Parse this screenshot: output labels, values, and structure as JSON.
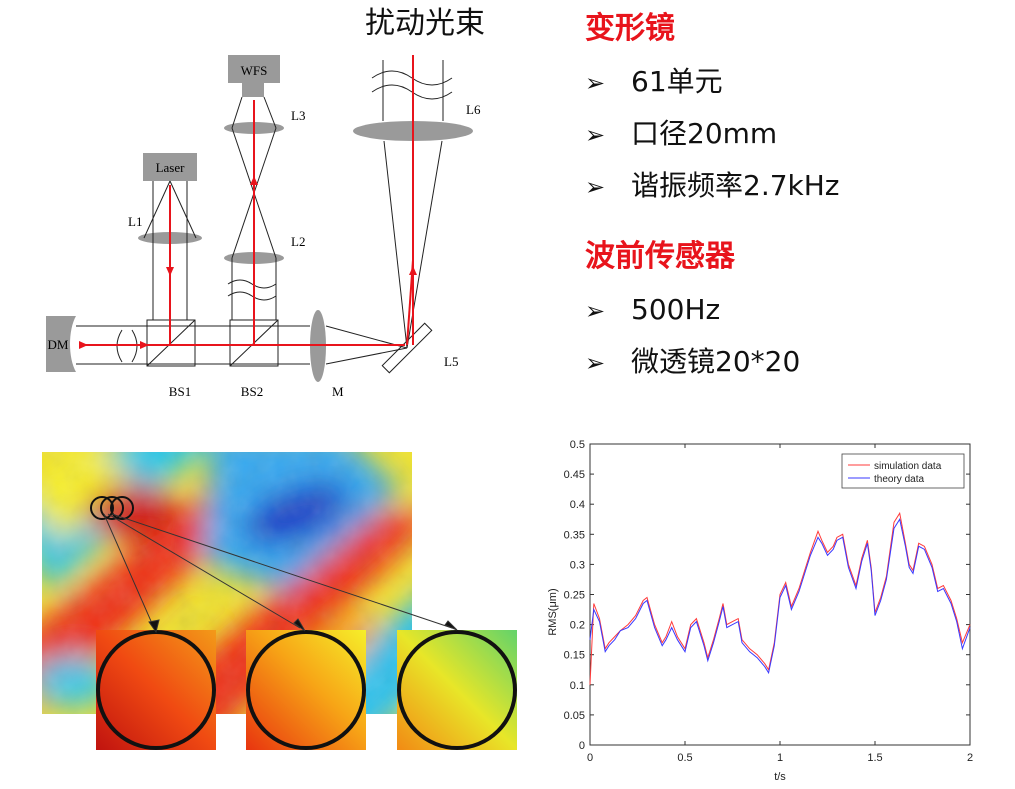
{
  "optical_diagram": {
    "top_label": "扰动光束",
    "labels": {
      "wfs": "WFS",
      "laser": "Laser",
      "l1": "L1",
      "l2": "L2",
      "l3": "L3",
      "l5": "L5",
      "l6": "L6",
      "dm": "DM",
      "bs1": "BS1",
      "bs2": "BS2",
      "m": "M"
    }
  },
  "specs": {
    "bullet_glyph": "➢",
    "groups": [
      {
        "title": "变形镜",
        "items": [
          "61单元",
          "口径20mm",
          "谐振频率2.7kHz"
        ]
      },
      {
        "title": "波前传感器",
        "items": [
          "500Hz",
          "微透镜20*20"
        ]
      }
    ]
  },
  "phase_screen": {
    "colormap": "jet",
    "zoom_count": 3
  },
  "chart_data": {
    "type": "line",
    "title": "",
    "xlabel": "t/s",
    "ylabel": "RMS(μm)",
    "xlim": [
      0,
      2
    ],
    "ylim": [
      0,
      0.5
    ],
    "xticks": [
      "0",
      "0.5",
      "1",
      "1.5",
      "2"
    ],
    "yticks": [
      "0",
      "0.05",
      "0.1",
      "0.15",
      "0.2",
      "0.25",
      "0.3",
      "0.35",
      "0.4",
      "0.45",
      "0.5"
    ],
    "grid": false,
    "legend_position": "top-right",
    "x": [
      0,
      0.02,
      0.05,
      0.08,
      0.1,
      0.13,
      0.16,
      0.2,
      0.24,
      0.28,
      0.3,
      0.34,
      0.38,
      0.4,
      0.43,
      0.46,
      0.5,
      0.53,
      0.56,
      0.6,
      0.62,
      0.65,
      0.68,
      0.7,
      0.72,
      0.75,
      0.78,
      0.8,
      0.84,
      0.88,
      0.92,
      0.94,
      0.97,
      1.0,
      1.03,
      1.06,
      1.1,
      1.13,
      1.16,
      1.2,
      1.22,
      1.25,
      1.28,
      1.3,
      1.33,
      1.36,
      1.4,
      1.43,
      1.46,
      1.48,
      1.5,
      1.53,
      1.56,
      1.6,
      1.63,
      1.66,
      1.68,
      1.7,
      1.73,
      1.76,
      1.8,
      1.83,
      1.86,
      1.9,
      1.93,
      1.96,
      2.0
    ],
    "series": [
      {
        "name": "simulation data",
        "color": "#ff3b3b",
        "values": [
          0.1,
          0.235,
          0.21,
          0.16,
          0.17,
          0.18,
          0.19,
          0.2,
          0.215,
          0.24,
          0.245,
          0.2,
          0.17,
          0.18,
          0.205,
          0.18,
          0.16,
          0.2,
          0.21,
          0.17,
          0.145,
          0.175,
          0.21,
          0.235,
          0.2,
          0.205,
          0.21,
          0.175,
          0.16,
          0.15,
          0.135,
          0.125,
          0.17,
          0.25,
          0.27,
          0.23,
          0.26,
          0.29,
          0.32,
          0.355,
          0.34,
          0.32,
          0.33,
          0.345,
          0.35,
          0.3,
          0.265,
          0.31,
          0.34,
          0.295,
          0.22,
          0.245,
          0.28,
          0.37,
          0.385,
          0.335,
          0.3,
          0.29,
          0.335,
          0.33,
          0.3,
          0.26,
          0.265,
          0.24,
          0.21,
          0.17,
          0.2
        ]
      },
      {
        "name": "theory data",
        "color": "#3a3aff",
        "values": [
          0.175,
          0.225,
          0.205,
          0.155,
          0.165,
          0.175,
          0.19,
          0.195,
          0.21,
          0.235,
          0.24,
          0.195,
          0.165,
          0.175,
          0.195,
          0.175,
          0.155,
          0.195,
          0.205,
          0.165,
          0.14,
          0.17,
          0.205,
          0.23,
          0.195,
          0.2,
          0.205,
          0.17,
          0.155,
          0.145,
          0.13,
          0.12,
          0.165,
          0.245,
          0.265,
          0.225,
          0.255,
          0.285,
          0.315,
          0.345,
          0.335,
          0.315,
          0.325,
          0.34,
          0.345,
          0.295,
          0.26,
          0.305,
          0.335,
          0.29,
          0.215,
          0.24,
          0.275,
          0.36,
          0.375,
          0.33,
          0.295,
          0.285,
          0.33,
          0.325,
          0.295,
          0.255,
          0.26,
          0.235,
          0.205,
          0.16,
          0.195
        ]
      }
    ]
  }
}
